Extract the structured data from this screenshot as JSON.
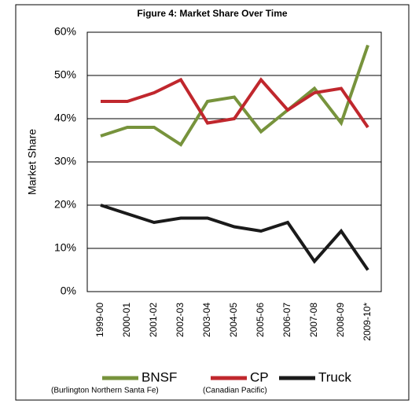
{
  "chart_data": {
    "type": "line",
    "title": "Figure 4: Market Share Over Time",
    "y_label": "Market Share",
    "categories": [
      "1999-00",
      "2000-01",
      "2001-02",
      "2002-03",
      "2003-04",
      "2004-05",
      "2005-06",
      "2006-07",
      "2007-08",
      "2008-09",
      "2009-10*"
    ],
    "series": [
      {
        "name": "BNSF",
        "description": "(Burlington Northern Santa Fe)",
        "color": "#77933c",
        "values": [
          36,
          38,
          38,
          34,
          44,
          45,
          37,
          42,
          47,
          39,
          57
        ]
      },
      {
        "name": "CP",
        "description": "(Canadian Pacific)",
        "color": "#c0272d",
        "values": [
          44,
          44,
          46,
          49,
          39,
          40,
          49,
          42,
          46,
          47,
          38
        ]
      },
      {
        "name": "Truck",
        "color": "#1a1a1a",
        "values": [
          20,
          18,
          16,
          17,
          17,
          15,
          14,
          16,
          7,
          14,
          5
        ]
      }
    ],
    "ylim": [
      0,
      60
    ],
    "yticks": [
      {
        "value": 0,
        "label": "0%"
      },
      {
        "value": 10,
        "label": "10%"
      },
      {
        "value": 20,
        "label": "20%"
      },
      {
        "value": 30,
        "label": "30%"
      },
      {
        "value": 40,
        "label": "40%"
      },
      {
        "value": 50,
        "label": "50%"
      },
      {
        "value": 60,
        "label": "60%"
      }
    ],
    "grid": true,
    "legend": "bottom"
  }
}
